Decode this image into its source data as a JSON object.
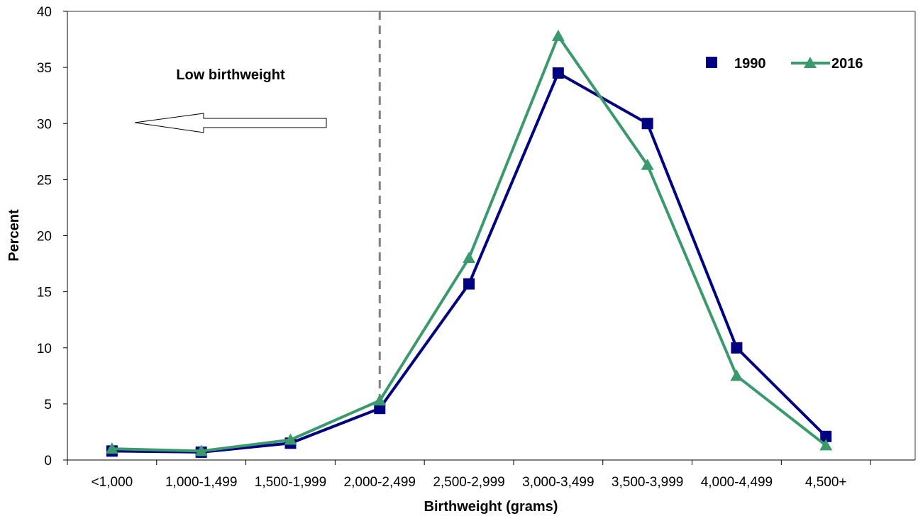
{
  "chart_data": {
    "type": "line",
    "xlabel": "Birthweight (grams)",
    "ylabel": "Percent",
    "categories": [
      "<1,000",
      "1,000-1,499",
      "1,500-1,999",
      "2,000-2,499",
      "2,500-2,999",
      "3,000-3,499",
      "3,500-3,999",
      "4,000-4,499",
      "4,500+"
    ],
    "yticks": [
      "0",
      "5",
      "10",
      "15",
      "20",
      "25",
      "30",
      "35",
      "40"
    ],
    "ylim": [
      0,
      40
    ],
    "series": [
      {
        "name": "1990",
        "color": "#000080",
        "marker": "square",
        "values": [
          0.8,
          0.7,
          1.5,
          4.6,
          15.7,
          34.5,
          30.0,
          10.0,
          2.1
        ]
      },
      {
        "name": "2016",
        "color": "#3a9a6e",
        "marker": "triangle",
        "values": [
          1.0,
          0.8,
          1.8,
          5.3,
          18.0,
          37.8,
          26.3,
          7.5,
          1.3
        ]
      }
    ],
    "annotation": {
      "text": "Low birthweight",
      "arrow_direction": "left"
    },
    "reference_line": {
      "style": "dashed",
      "color": "#808080",
      "position": "between 2,000-2,499 and 2,500-2,999"
    },
    "legend": {
      "position": "top-right"
    },
    "grid": false
  }
}
